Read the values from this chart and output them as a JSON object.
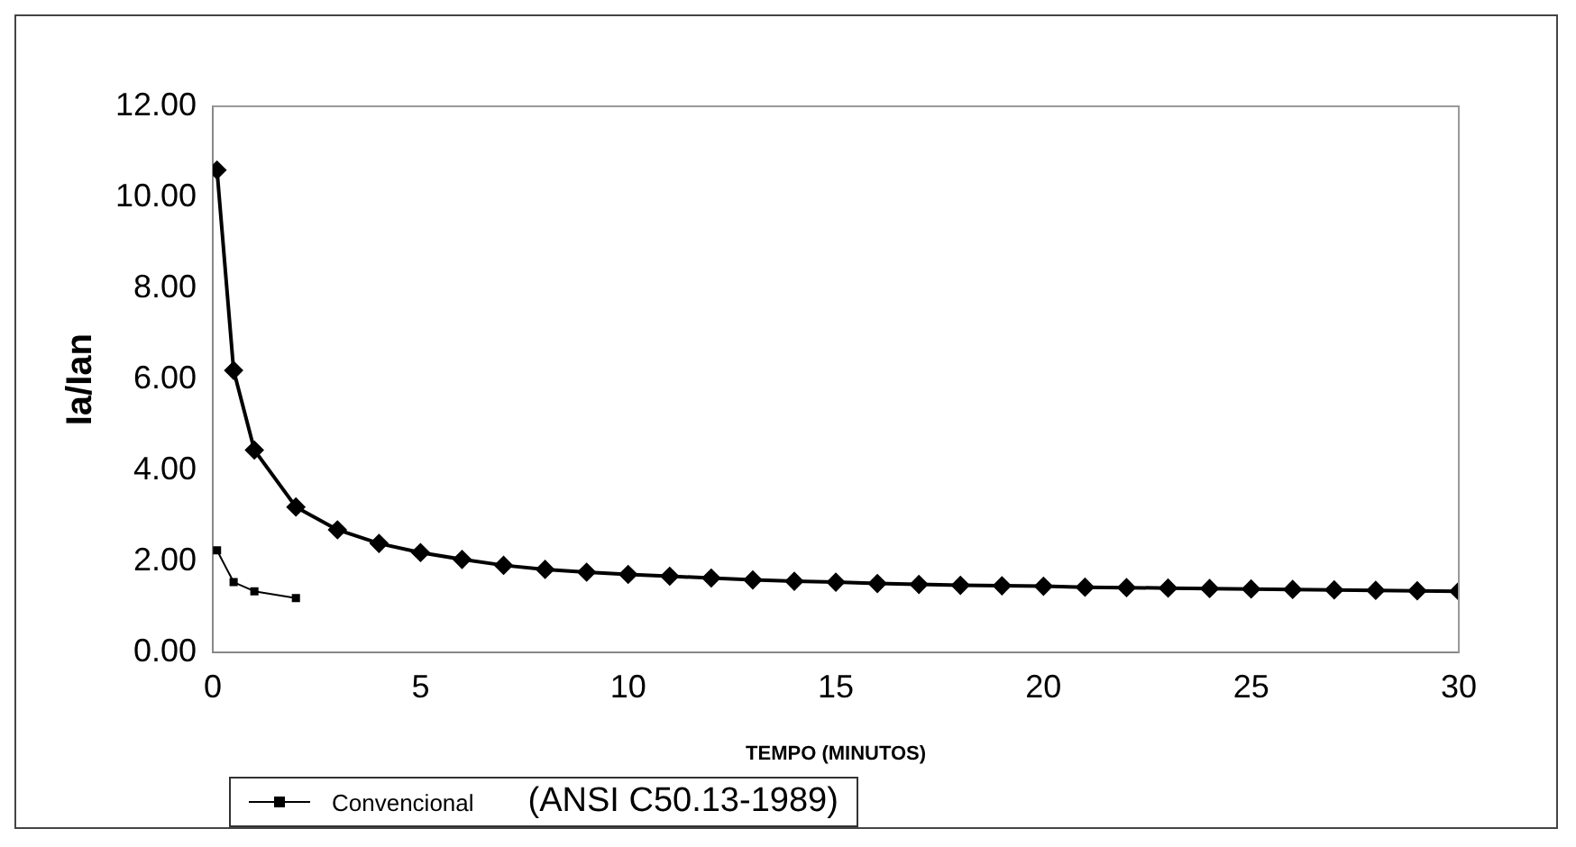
{
  "chart_data": {
    "type": "line",
    "xlabel": "TEMPO (MINUTOS)",
    "ylabel": "Ia/Ian",
    "xlim": [
      0,
      30
    ],
    "xticks": [
      0,
      5,
      10,
      15,
      20,
      25,
      30
    ],
    "ylim": [
      0,
      12
    ],
    "yticks": [
      {
        "value": 0,
        "label": "0.00"
      },
      {
        "value": 2,
        "label": "2.00"
      },
      {
        "value": 4,
        "label": "4.00"
      },
      {
        "value": 6,
        "label": "6.00"
      },
      {
        "value": 8,
        "label": "8.00"
      },
      {
        "value": 10,
        "label": "10.00"
      },
      {
        "value": 12,
        "label": "12.00"
      }
    ],
    "grid": false,
    "legend": "bottom",
    "line_style": "solid",
    "annotations": [
      "(ANSI C50.13-1989)"
    ],
    "series": [
      {
        "color": "#000000",
        "marker": "diamond",
        "x": [
          0.1,
          0.5,
          1,
          2,
          3,
          4,
          5,
          6,
          7,
          8,
          9,
          10,
          11,
          12,
          13,
          14,
          15,
          16,
          17,
          18,
          19,
          20,
          21,
          22,
          23,
          24,
          25,
          26,
          27,
          28,
          29,
          30
        ],
        "values": [
          10.6,
          6.2,
          4.45,
          3.2,
          2.7,
          2.4,
          2.2,
          2.05,
          1.92,
          1.83,
          1.77,
          1.72,
          1.68,
          1.64,
          1.6,
          1.57,
          1.55,
          1.52,
          1.5,
          1.48,
          1.47,
          1.46,
          1.44,
          1.43,
          1.42,
          1.41,
          1.4,
          1.39,
          1.38,
          1.37,
          1.36,
          1.35
        ]
      },
      {
        "name": "Convencional",
        "color": "#000000",
        "marker": "square",
        "x": [
          0.1,
          0.5,
          1,
          2
        ],
        "values": [
          2.25,
          1.55,
          1.35,
          1.2
        ]
      }
    ]
  }
}
